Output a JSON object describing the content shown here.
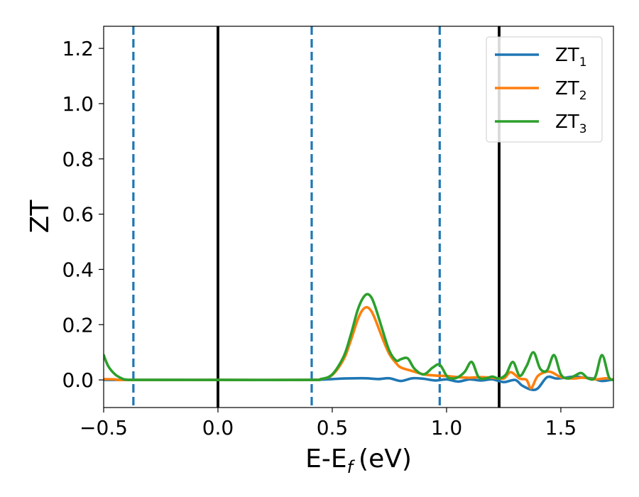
{
  "chart_data": {
    "type": "line",
    "xlabel": "E-E",
    "xlabel_sub": "f",
    "xlabel_unit": "(eV)",
    "ylabel": "ZT",
    "xlim": [
      -0.5,
      1.73
    ],
    "ylim": [
      -0.1,
      1.28
    ],
    "xticks": [
      -0.5,
      0.0,
      0.5,
      1.0,
      1.5
    ],
    "xtick_labels": [
      "−0.5",
      "0.0",
      "0.5",
      "1.0",
      "1.5"
    ],
    "yticks": [
      0.0,
      0.2,
      0.4,
      0.6,
      0.8,
      1.0,
      1.2
    ],
    "ytick_labels": [
      "0.0",
      "0.2",
      "0.4",
      "0.6",
      "0.8",
      "1.0",
      "1.2"
    ],
    "grid": false,
    "legend_position": "top-right",
    "vertical_lines": [
      {
        "x": -0.37,
        "style": "dashed",
        "color": "#1f77b4"
      },
      {
        "x": 0.0,
        "style": "solid",
        "color": "#000000"
      },
      {
        "x": 0.41,
        "style": "dashed",
        "color": "#1f77b4"
      },
      {
        "x": 0.97,
        "style": "dashed",
        "color": "#1f77b4"
      },
      {
        "x": 1.23,
        "style": "solid",
        "color": "#000000"
      }
    ],
    "series": [
      {
        "name": "ZT",
        "sub": "1",
        "color": "#1f77b4",
        "x": [
          -0.5,
          -0.45,
          -0.4,
          0.0,
          0.4,
          0.45,
          0.5,
          0.55,
          0.6,
          0.65,
          0.7,
          0.75,
          0.8,
          0.85,
          0.9,
          0.95,
          1.0,
          1.05,
          1.1,
          1.15,
          1.2,
          1.25,
          1.3,
          1.33,
          1.37,
          1.4,
          1.44,
          1.48,
          1.52,
          1.56,
          1.6,
          1.64,
          1.68,
          1.73
        ],
        "y": [
          0.0,
          0.0,
          0.0,
          0.0,
          0.0,
          0.001,
          0.003,
          0.005,
          0.006,
          0.006,
          0.003,
          0.006,
          -0.004,
          0.006,
          0.004,
          -0.002,
          0.002,
          -0.006,
          0.002,
          -0.002,
          0.002,
          -0.008,
          0.0,
          -0.02,
          -0.035,
          -0.03,
          0.01,
          0.005,
          0.008,
          0.012,
          0.008,
          0.005,
          -0.004,
          0.002
        ]
      },
      {
        "name": "ZT",
        "sub": "2",
        "color": "#ff7f0e",
        "x": [
          -0.5,
          -0.45,
          -0.4,
          0.0,
          0.4,
          0.45,
          0.5,
          0.55,
          0.58,
          0.61,
          0.63,
          0.65,
          0.67,
          0.69,
          0.72,
          0.75,
          0.78,
          0.8,
          0.85,
          0.9,
          0.95,
          1.0,
          1.05,
          1.1,
          1.15,
          1.2,
          1.25,
          1.28,
          1.32,
          1.35,
          1.37,
          1.4,
          1.45,
          1.5,
          1.55,
          1.6,
          1.65,
          1.7,
          1.73
        ],
        "y": [
          0.003,
          0.002,
          0.0,
          0.0,
          0.0,
          0.003,
          0.018,
          0.075,
          0.14,
          0.215,
          0.25,
          0.263,
          0.25,
          0.215,
          0.15,
          0.093,
          0.06,
          0.045,
          0.032,
          0.02,
          0.016,
          0.014,
          0.01,
          0.008,
          0.01,
          0.008,
          0.005,
          0.028,
          0.005,
          0.0,
          -0.03,
          0.015,
          0.03,
          0.01,
          0.005,
          0.008,
          0.002,
          0.006,
          0.0
        ]
      },
      {
        "name": "ZT",
        "sub": "3",
        "color": "#2ca02c",
        "x": [
          -0.5,
          -0.48,
          -0.45,
          -0.42,
          -0.4,
          -0.35,
          0.0,
          0.4,
          0.45,
          0.5,
          0.55,
          0.58,
          0.61,
          0.63,
          0.65,
          0.67,
          0.69,
          0.72,
          0.75,
          0.78,
          0.8,
          0.83,
          0.86,
          0.9,
          0.94,
          0.97,
          1.0,
          1.02,
          1.05,
          1.08,
          1.11,
          1.14,
          1.17,
          1.2,
          1.23,
          1.26,
          1.29,
          1.32,
          1.35,
          1.38,
          1.41,
          1.44,
          1.47,
          1.5,
          1.53,
          1.56,
          1.59,
          1.62,
          1.65,
          1.68,
          1.71,
          1.73
        ],
        "y": [
          0.09,
          0.05,
          0.02,
          0.005,
          0.001,
          0.0,
          0.0,
          0.0,
          0.003,
          0.02,
          0.085,
          0.16,
          0.25,
          0.29,
          0.31,
          0.3,
          0.26,
          0.18,
          0.105,
          0.07,
          0.075,
          0.078,
          0.04,
          0.02,
          0.045,
          0.055,
          0.015,
          0.005,
          0.01,
          0.03,
          0.065,
          0.01,
          0.005,
          0.012,
          0.005,
          0.02,
          0.065,
          0.015,
          0.05,
          0.1,
          0.04,
          0.035,
          0.09,
          0.02,
          0.005,
          0.015,
          0.025,
          0.005,
          0.01,
          0.09,
          0.01,
          0.0
        ]
      }
    ]
  }
}
